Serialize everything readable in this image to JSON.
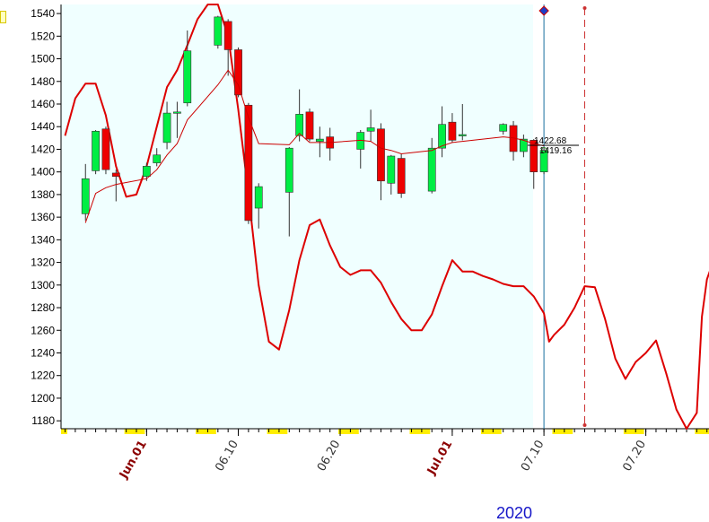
{
  "colors": {
    "background": "#ffffff",
    "plot_shade": "#f0ffff",
    "up_candle": "#00ee44",
    "down_candle": "#ee0000",
    "indicator_line": "#dd0000",
    "moving_average": "#cc0000",
    "cursor_line": "#1a6fa0",
    "forecast_line": "#cc3333",
    "weekend_marker": "#ffee00",
    "month_label": "#8b0000",
    "day_label": "#333333",
    "year_label": "#1515c8"
  },
  "chart_data": {
    "type": "candlestick",
    "y_axis": {
      "ylim": [
        1173,
        1548
      ],
      "ticks": [
        "1180",
        "1200",
        "1220",
        "1240",
        "1260",
        "1280",
        "1300",
        "1320",
        "1340",
        "1360",
        "1380",
        "1400",
        "1420",
        "1440",
        "1460",
        "1480",
        "1500",
        "1520",
        "1540"
      ]
    },
    "x_axis": {
      "date_range": [
        "2020-05-24",
        "2020-07-26"
      ],
      "ticks": [
        {
          "date": "2020-06-01",
          "label": "Jun.01",
          "kind": "month"
        },
        {
          "date": "2020-06-10",
          "label": "06.10",
          "kind": "day"
        },
        {
          "date": "2020-06-20",
          "label": "06.20",
          "kind": "day"
        },
        {
          "date": "2020-07-01",
          "label": "Jul.01",
          "kind": "month"
        },
        {
          "date": "2020-07-10",
          "label": "07.10",
          "kind": "day"
        },
        {
          "date": "2020-07-20",
          "label": "07.20",
          "kind": "day"
        }
      ],
      "year_label": "2020",
      "weekend_blocks": [
        "2020-05-30",
        "2020-06-06",
        "2020-06-13",
        "2020-06-20",
        "2020-06-27",
        "2020-07-04",
        "2020-07-11",
        "2020-07-18",
        "2020-07-25"
      ]
    },
    "candles": [
      {
        "date": "2020-05-26",
        "open": 1363,
        "high": 1407,
        "low": 1357,
        "close": 1394
      },
      {
        "date": "2020-05-27",
        "open": 1401,
        "high": 1437,
        "low": 1398,
        "close": 1436
      },
      {
        "date": "2020-05-28",
        "open": 1438,
        "high": 1440,
        "low": 1398,
        "close": 1402
      },
      {
        "date": "2020-05-29",
        "open": 1399,
        "high": 1402,
        "low": 1374,
        "close": 1396
      },
      {
        "date": "2020-06-01",
        "open": 1396,
        "high": 1408,
        "low": 1392,
        "close": 1405
      },
      {
        "date": "2020-06-02",
        "open": 1408,
        "high": 1421,
        "low": 1405,
        "close": 1415
      },
      {
        "date": "2020-06-03",
        "open": 1426,
        "high": 1462,
        "low": 1420,
        "close": 1452
      },
      {
        "date": "2020-06-04",
        "open": 1452,
        "high": 1462,
        "low": 1430,
        "close": 1453
      },
      {
        "date": "2020-06-05",
        "open": 1461,
        "high": 1525,
        "low": 1458,
        "close": 1507
      },
      {
        "date": "2020-06-08",
        "open": 1512,
        "high": 1538,
        "low": 1509,
        "close": 1537
      },
      {
        "date": "2020-06-09",
        "open": 1533,
        "high": 1535,
        "low": 1485,
        "close": 1508
      },
      {
        "date": "2020-06-10",
        "open": 1508,
        "high": 1510,
        "low": 1466,
        "close": 1468
      },
      {
        "date": "2020-06-11",
        "open": 1459,
        "high": 1461,
        "low": 1354,
        "close": 1357
      },
      {
        "date": "2020-06-12",
        "open": 1368,
        "high": 1390,
        "low": 1350,
        "close": 1387
      },
      {
        "date": "2020-06-15",
        "open": 1382,
        "high": 1422,
        "low": 1343,
        "close": 1421
      },
      {
        "date": "2020-06-16",
        "open": 1432,
        "high": 1473,
        "low": 1427,
        "close": 1451
      },
      {
        "date": "2020-06-17",
        "open": 1453,
        "high": 1456,
        "low": 1427,
        "close": 1429
      },
      {
        "date": "2020-06-18",
        "open": 1427,
        "high": 1440,
        "low": 1413,
        "close": 1429
      },
      {
        "date": "2020-06-19",
        "open": 1431,
        "high": 1439,
        "low": 1410,
        "close": 1421
      },
      {
        "date": "2020-06-22",
        "open": 1420,
        "high": 1437,
        "low": 1403,
        "close": 1435
      },
      {
        "date": "2020-06-23",
        "open": 1436,
        "high": 1455,
        "low": 1427,
        "close": 1439
      },
      {
        "date": "2020-06-24",
        "open": 1438,
        "high": 1443,
        "low": 1375,
        "close": 1392
      },
      {
        "date": "2020-06-25",
        "open": 1390,
        "high": 1415,
        "low": 1380,
        "close": 1414
      },
      {
        "date": "2020-06-26",
        "open": 1412,
        "high": 1416,
        "low": 1377,
        "close": 1381
      },
      {
        "date": "2020-06-29",
        "open": 1383,
        "high": 1430,
        "low": 1381,
        "close": 1421
      },
      {
        "date": "2020-06-30",
        "open": 1421,
        "high": 1458,
        "low": 1413,
        "close": 1442
      },
      {
        "date": "2020-07-01",
        "open": 1444,
        "high": 1452,
        "low": 1426,
        "close": 1428
      },
      {
        "date": "2020-07-02",
        "open": 1432,
        "high": 1460,
        "low": 1428,
        "close": 1433
      },
      {
        "date": "2020-07-06",
        "open": 1436,
        "high": 1443,
        "low": 1433,
        "close": 1442
      },
      {
        "date": "2020-07-07",
        "open": 1441,
        "high": 1445,
        "low": 1410,
        "close": 1418
      },
      {
        "date": "2020-07-08",
        "open": 1418,
        "high": 1433,
        "low": 1413,
        "close": 1429
      },
      {
        "date": "2020-07-09",
        "open": 1428,
        "high": 1429,
        "low": 1385,
        "close": 1400
      },
      {
        "date": "2020-07-10",
        "open": 1400,
        "high": 1422,
        "low": 1398,
        "close": 1419
      }
    ],
    "moving_average": [
      {
        "date": "2020-05-26",
        "y": 1355
      },
      {
        "date": "2020-05-27",
        "y": 1381
      },
      {
        "date": "2020-05-28",
        "y": 1386
      },
      {
        "date": "2020-05-29",
        "y": 1389
      },
      {
        "date": "2020-06-01",
        "y": 1394
      },
      {
        "date": "2020-06-02",
        "y": 1402
      },
      {
        "date": "2020-06-03",
        "y": 1415
      },
      {
        "date": "2020-06-04",
        "y": 1425
      },
      {
        "date": "2020-06-05",
        "y": 1446
      },
      {
        "date": "2020-06-08",
        "y": 1477
      },
      {
        "date": "2020-06-09",
        "y": 1490
      },
      {
        "date": "2020-06-10",
        "y": 1477
      },
      {
        "date": "2020-06-11",
        "y": 1448
      },
      {
        "date": "2020-06-12",
        "y": 1425
      },
      {
        "date": "2020-06-15",
        "y": 1424
      },
      {
        "date": "2020-06-16",
        "y": 1434
      },
      {
        "date": "2020-06-17",
        "y": 1426
      },
      {
        "date": "2020-06-18",
        "y": 1426
      },
      {
        "date": "2020-06-19",
        "y": 1426
      },
      {
        "date": "2020-06-22",
        "y": 1428
      },
      {
        "date": "2020-06-23",
        "y": 1427
      },
      {
        "date": "2020-06-24",
        "y": 1421
      },
      {
        "date": "2020-06-25",
        "y": 1419
      },
      {
        "date": "2020-06-26",
        "y": 1416
      },
      {
        "date": "2020-06-29",
        "y": 1419
      },
      {
        "date": "2020-06-30",
        "y": 1423
      },
      {
        "date": "2020-07-01",
        "y": 1426
      },
      {
        "date": "2020-07-02",
        "y": 1427
      },
      {
        "date": "2020-07-06",
        "y": 1431
      },
      {
        "date": "2020-07-07",
        "y": 1430
      },
      {
        "date": "2020-07-08",
        "y": 1428
      },
      {
        "date": "2020-07-09",
        "y": 1425
      },
      {
        "date": "2020-07-10",
        "y": 1423
      }
    ],
    "indicator_line": [
      {
        "date": "2020-05-24",
        "y": 1432
      },
      {
        "date": "2020-05-25",
        "y": 1465
      },
      {
        "date": "2020-05-26",
        "y": 1478
      },
      {
        "date": "2020-05-27",
        "y": 1478
      },
      {
        "date": "2020-05-28",
        "y": 1450
      },
      {
        "date": "2020-05-29",
        "y": 1405
      },
      {
        "date": "2020-05-30",
        "y": 1378
      },
      {
        "date": "2020-05-31",
        "y": 1380
      },
      {
        "date": "2020-06-01",
        "y": 1405
      },
      {
        "date": "2020-06-02",
        "y": 1440
      },
      {
        "date": "2020-06-03",
        "y": 1475
      },
      {
        "date": "2020-06-04",
        "y": 1490
      },
      {
        "date": "2020-06-05",
        "y": 1512
      },
      {
        "date": "2020-06-06",
        "y": 1535
      },
      {
        "date": "2020-06-07",
        "y": 1548
      },
      {
        "date": "2020-06-08",
        "y": 1548
      },
      {
        "date": "2020-06-09",
        "y": 1520
      },
      {
        "date": "2020-06-10",
        "y": 1455
      },
      {
        "date": "2020-06-11",
        "y": 1380
      },
      {
        "date": "2020-06-12",
        "y": 1300
      },
      {
        "date": "2020-06-13",
        "y": 1250
      },
      {
        "date": "2020-06-14",
        "y": 1243
      },
      {
        "date": "2020-06-15",
        "y": 1278
      },
      {
        "date": "2020-06-16",
        "y": 1322
      },
      {
        "date": "2020-06-17",
        "y": 1353
      },
      {
        "date": "2020-06-18",
        "y": 1358
      },
      {
        "date": "2020-06-19",
        "y": 1335
      },
      {
        "date": "2020-06-20",
        "y": 1316
      },
      {
        "date": "2020-06-21",
        "y": 1309
      },
      {
        "date": "2020-06-22",
        "y": 1313
      },
      {
        "date": "2020-06-23",
        "y": 1313
      },
      {
        "date": "2020-06-24",
        "y": 1302
      },
      {
        "date": "2020-06-25",
        "y": 1285
      },
      {
        "date": "2020-06-26",
        "y": 1270
      },
      {
        "date": "2020-06-27",
        "y": 1260
      },
      {
        "date": "2020-06-28",
        "y": 1260
      },
      {
        "date": "2020-06-29",
        "y": 1274
      },
      {
        "date": "2020-06-30",
        "y": 1299
      },
      {
        "date": "2020-07-01",
        "y": 1322
      },
      {
        "date": "2020-07-02",
        "y": 1312
      },
      {
        "date": "2020-07-03",
        "y": 1312
      },
      {
        "date": "2020-07-04",
        "y": 1308
      },
      {
        "date": "2020-07-05",
        "y": 1305
      },
      {
        "date": "2020-07-06",
        "y": 1301
      },
      {
        "date": "2020-07-07",
        "y": 1299
      },
      {
        "date": "2020-07-08",
        "y": 1299
      },
      {
        "date": "2020-07-09",
        "y": 1290
      },
      {
        "date": "2020-07-10",
        "y": 1275
      },
      {
        "date": "2020-07-10T12:00",
        "y": 1250
      },
      {
        "date": "2020-07-11",
        "y": 1256
      },
      {
        "date": "2020-07-12",
        "y": 1265
      },
      {
        "date": "2020-07-13",
        "y": 1280
      },
      {
        "date": "2020-07-14",
        "y": 1299
      },
      {
        "date": "2020-07-15",
        "y": 1298
      },
      {
        "date": "2020-07-16",
        "y": 1270
      },
      {
        "date": "2020-07-17",
        "y": 1235
      },
      {
        "date": "2020-07-18",
        "y": 1217
      },
      {
        "date": "2020-07-19",
        "y": 1232
      },
      {
        "date": "2020-07-20",
        "y": 1240
      },
      {
        "date": "2020-07-21",
        "y": 1251
      },
      {
        "date": "2020-07-22",
        "y": 1222
      },
      {
        "date": "2020-07-23",
        "y": 1190
      },
      {
        "date": "2020-07-24",
        "y": 1173
      },
      {
        "date": "2020-07-25",
        "y": 1187
      },
      {
        "date": "2020-07-25T12:00",
        "y": 1272
      },
      {
        "date": "2020-07-26",
        "y": 1305
      },
      {
        "date": "2020-07-26T12:00",
        "y": 1318
      }
    ],
    "cursor": {
      "date": "2020-07-10"
    },
    "forecast_marker": {
      "date": "2020-07-14"
    },
    "price_labels": {
      "upper": "1422.68",
      "lower": "1419.16"
    }
  }
}
